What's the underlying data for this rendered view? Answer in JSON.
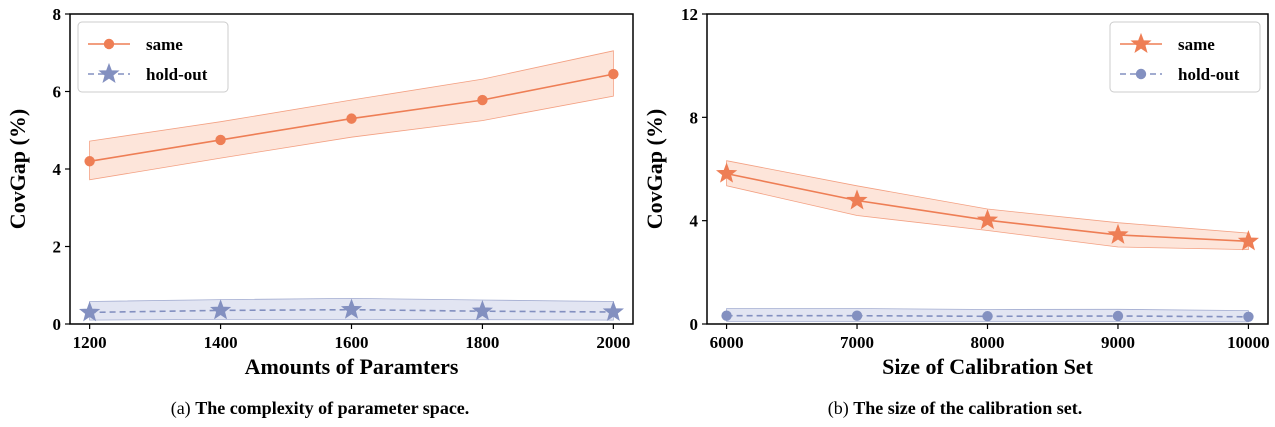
{
  "colors": {
    "same": "#ee7e55",
    "same_band": "#fde0d3",
    "holdout": "#8390c0",
    "holdout_band": "#dde1f0"
  },
  "chart_data": [
    {
      "type": "line",
      "caption_prefix": "(a)",
      "caption": "The complexity of parameter space.",
      "xlabel": "Amounts of Paramters",
      "ylabel": "CovGap (%)",
      "x": [
        1200,
        1400,
        1600,
        1800,
        2000
      ],
      "xlim": [
        1170,
        2030
      ],
      "ylim": [
        0,
        8
      ],
      "yticks": [
        0,
        2,
        4,
        6,
        8
      ],
      "legend_position": "top-left",
      "series": [
        {
          "name": "same",
          "marker": "circle",
          "style": "solid",
          "color": "#ee7e55",
          "values": [
            4.2,
            4.75,
            5.3,
            5.78,
            6.45
          ],
          "lower": [
            3.72,
            4.28,
            4.82,
            5.25,
            5.88
          ],
          "upper": [
            4.72,
            5.22,
            5.78,
            6.32,
            7.05
          ]
        },
        {
          "name": "hold-out",
          "marker": "star",
          "style": "dashed",
          "color": "#8390c0",
          "values": [
            0.3,
            0.35,
            0.37,
            0.33,
            0.31
          ],
          "lower": [
            0.1,
            0.12,
            0.12,
            0.11,
            0.1
          ],
          "upper": [
            0.58,
            0.63,
            0.66,
            0.62,
            0.58
          ]
        }
      ]
    },
    {
      "type": "line",
      "caption_prefix": "(b)",
      "caption": "The size of the calibration set.",
      "xlabel": "Size of Calibration Set",
      "ylabel": "CovGap (%)",
      "x": [
        6000,
        7000,
        8000,
        9000,
        10000
      ],
      "xlim": [
        5850,
        10150
      ],
      "ylim": [
        0,
        12
      ],
      "yticks": [
        0,
        4,
        8,
        12
      ],
      "legend_position": "top-right",
      "series": [
        {
          "name": "same",
          "marker": "star",
          "style": "solid",
          "color": "#ee7e55",
          "values": [
            5.82,
            4.78,
            4.02,
            3.45,
            3.2
          ],
          "lower": [
            5.35,
            4.2,
            3.62,
            2.98,
            2.88
          ],
          "upper": [
            6.32,
            5.35,
            4.45,
            3.92,
            3.52
          ]
        },
        {
          "name": "hold-out",
          "marker": "circle",
          "style": "dashed",
          "color": "#8390c0",
          "values": [
            0.32,
            0.32,
            0.3,
            0.31,
            0.28
          ],
          "lower": [
            0.1,
            0.1,
            0.1,
            0.1,
            0.08
          ],
          "upper": [
            0.6,
            0.6,
            0.56,
            0.57,
            0.52
          ]
        }
      ]
    }
  ]
}
